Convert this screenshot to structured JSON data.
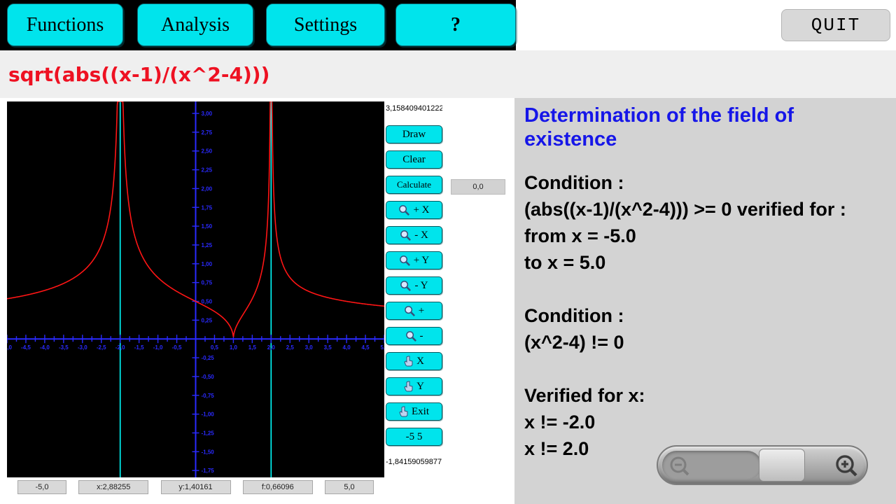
{
  "topbar": {
    "buttons": [
      "Functions",
      "Analysis",
      "Settings",
      "?"
    ],
    "quit_label": "QUIT"
  },
  "formula_bar": {
    "expression": "sqrt(abs((x-1)/(x^2-4)))"
  },
  "graph": {
    "ymax_readout": "3,158409401222",
    "ymin_readout": "-1,84159059877",
    "origin_readout": "0,0",
    "status_cells": [
      "-5,0",
      "x:2,88255",
      "y:1,40161",
      "f:0,66096",
      "5,0"
    ]
  },
  "controls": {
    "draw": "Draw",
    "clear": "Clear",
    "calculate": "Calculate",
    "zoom_x_plus": "+ X",
    "zoom_x_minus": "- X",
    "zoom_y_plus": "+ Y",
    "zoom_y_minus": "- Y",
    "zoom_plus": "+",
    "zoom_minus": "-",
    "pan_x": "X",
    "pan_y": "Y",
    "exit": "Exit",
    "range": "-5  5"
  },
  "panel": {
    "title": "Determination of the field of existence",
    "lines": [
      "Condition :",
      "(abs((x-1)/(x^2-4))) >= 0 verified for :",
      "from x = -5.0",
      "to x = 5.0",
      "Condition :",
      "(x^2-4) != 0",
      "Verified for x:",
      "x != -2.0",
      "x != 2.0"
    ]
  },
  "chart_data": {
    "type": "line",
    "expression": "sqrt(abs((x-1)/(x^2-4)))",
    "x_range": [
      -5,
      5
    ],
    "y_range": [
      -1.84159059877,
      3.158409401222
    ],
    "asymptotes_x": [
      -2,
      2
    ],
    "zero_x": 1,
    "x_tick_step": 0.25,
    "x_label_step": 0.5,
    "y_tick_step": 0.25,
    "y_label_step": 0.25,
    "background": "#000000",
    "axis_color": "#2a2aff",
    "curve_color": "#ff1515",
    "asymptote_color": "#00ffff"
  }
}
